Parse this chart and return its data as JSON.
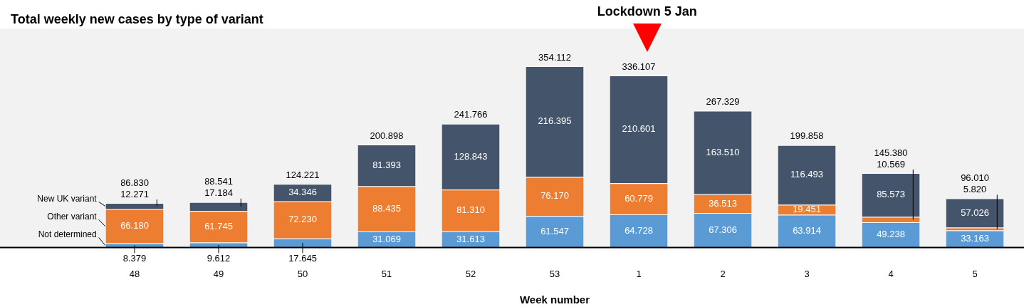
{
  "chart_data": {
    "type": "bar",
    "title": "Total weekly new cases by type of variant",
    "xlabel": "Week number",
    "categories": [
      "48",
      "49",
      "50",
      "51",
      "52",
      "53",
      "1",
      "2",
      "3",
      "4",
      "5"
    ],
    "stacked": true,
    "legend": "left",
    "series": [
      {
        "name": "Not determined",
        "color": "#5b9bd5",
        "values": [
          8.379,
          9.612,
          17.645,
          31.069,
          31.613,
          61.547,
          64.728,
          67.306,
          63.914,
          49.238,
          33.163
        ],
        "value_labels": [
          "8.379",
          "9.612",
          "17.645",
          "31.069",
          "31.613",
          "61.547",
          "64.728",
          "67.306",
          "63.914",
          "49.238",
          "33.163"
        ]
      },
      {
        "name": "Other variant",
        "color": "#ed7d31",
        "values": [
          66.18,
          61.745,
          72.23,
          88.435,
          81.31,
          76.17,
          60.779,
          36.513,
          19.451,
          10.569,
          5.82
        ],
        "value_labels": [
          "66.180",
          "61.745",
          "72.230",
          "88.435",
          "81.310",
          "76.170",
          "60.779",
          "36.513",
          "19.451",
          "10.569",
          "5.820"
        ]
      },
      {
        "name": "New UK variant",
        "color": "#44546a",
        "values": [
          12.271,
          17.184,
          34.346,
          81.393,
          128.843,
          216.395,
          210.601,
          163.51,
          116.493,
          85.573,
          57.026
        ],
        "value_labels": [
          "12.271",
          "17.184",
          "34.346",
          "81.393",
          "128.843",
          "216.395",
          "210.601",
          "163.510",
          "116.493",
          "85.573",
          "57.026"
        ]
      }
    ],
    "totals": [
      "86.830",
      "88.541",
      "124.221",
      "200.898",
      "241.766",
      "354.112",
      "336.107",
      "267.329",
      "199.858",
      "145.380",
      "96.010"
    ],
    "annotations": [
      "Lockdown 5 Jan"
    ]
  }
}
